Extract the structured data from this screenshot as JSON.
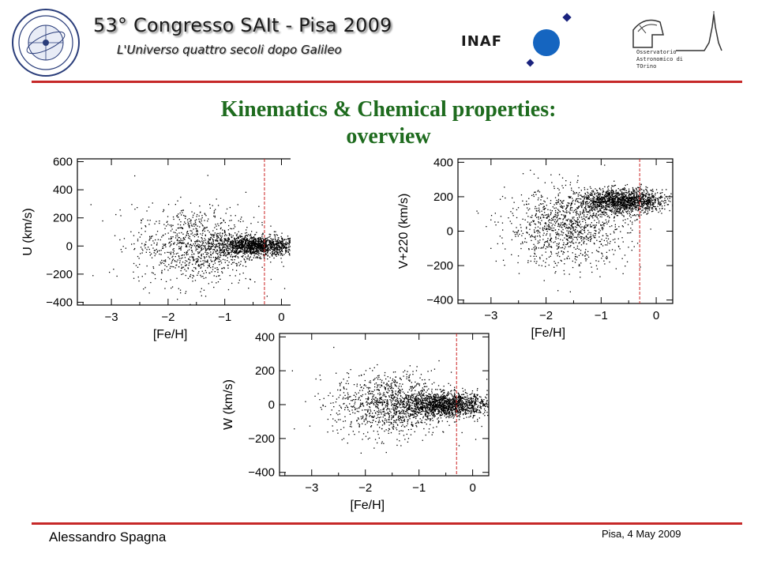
{
  "header": {
    "congress_title": "53° Congresso SAIt - Pisa 2009",
    "congress_subtitle": "L'Universo quattro secoli dopo Galileo",
    "inaf_logo_text": "INAF",
    "oato_logo_text": "Osservatorio\nAstronomico di\nTOrino",
    "salt_seal_text": "Società Astronomica Italiana · 1871 Società degli Spettroscopisti"
  },
  "slide": {
    "title_line1": "Kinematics & Chemical properties:",
    "title_line2": "overview"
  },
  "footer": {
    "author": "Alessandro Spagna",
    "date": "Pisa, 4 May 2009"
  },
  "colors": {
    "title_green": "#1e6b1e",
    "rule_red": "#c62828",
    "cut_line_red": "#cc2222",
    "inaf_blue": "#1565c0",
    "points": "#000000"
  },
  "chart_data": [
    {
      "type": "scatter",
      "xlabel": "[Fe/H]",
      "ylabel": "U (km/s)",
      "xlim": [
        -3.6,
        0.3
      ],
      "ylim": [
        -420,
        620
      ],
      "xticks": [
        -3,
        -2,
        -1,
        0
      ],
      "xtick_labels": [
        "−3",
        "−2",
        "−1",
        "0"
      ],
      "yticks": [
        -400,
        -200,
        0,
        200,
        400,
        600
      ],
      "ytick_labels": [
        "−400",
        "−200",
        "0",
        "200",
        "400",
        "600"
      ],
      "vline_x": -0.3,
      "clouds": [
        {
          "n": 1400,
          "x_mean": -0.45,
          "x_sd": 0.4,
          "y_mean": 0,
          "y_sd": 35
        },
        {
          "n": 1000,
          "x_mean": -1.5,
          "x_sd": 0.55,
          "y_mean": 0,
          "y_sd": 140
        }
      ]
    },
    {
      "type": "scatter",
      "xlabel": "[Fe/H]",
      "ylabel": "V+220 (km/s)",
      "xlim": [
        -3.6,
        0.3
      ],
      "ylim": [
        -420,
        420
      ],
      "xticks": [
        -3,
        -2,
        -1,
        0
      ],
      "xtick_labels": [
        "−3",
        "−2",
        "−1",
        "0"
      ],
      "yticks": [
        -400,
        -200,
        0,
        200,
        400
      ],
      "ytick_labels": [
        "−400",
        "−200",
        "0",
        "200",
        "400"
      ],
      "vline_x": -0.3,
      "clouds": [
        {
          "n": 1500,
          "x_mean": -0.6,
          "x_sd": 0.4,
          "y_mean": 175,
          "y_sd": 35
        },
        {
          "n": 1100,
          "x_mean": -1.6,
          "x_sd": 0.55,
          "y_mean": 20,
          "y_sd": 110
        }
      ]
    },
    {
      "type": "scatter",
      "xlabel": "[Fe/H]",
      "ylabel": "W (km/s)",
      "xlim": [
        -3.6,
        0.3
      ],
      "ylim": [
        -420,
        420
      ],
      "xticks": [
        -3,
        -2,
        -1,
        0
      ],
      "xtick_labels": [
        "−3",
        "−2",
        "−1",
        "0"
      ],
      "yticks": [
        -400,
        -200,
        0,
        200,
        400
      ],
      "ytick_labels": [
        "−400",
        "−200",
        "0",
        "200",
        "400"
      ],
      "vline_x": -0.3,
      "clouds": [
        {
          "n": 1400,
          "x_mean": -0.5,
          "x_sd": 0.4,
          "y_mean": 0,
          "y_sd": 35
        },
        {
          "n": 1100,
          "x_mean": -1.5,
          "x_sd": 0.55,
          "y_mean": 0,
          "y_sd": 95
        }
      ]
    }
  ]
}
